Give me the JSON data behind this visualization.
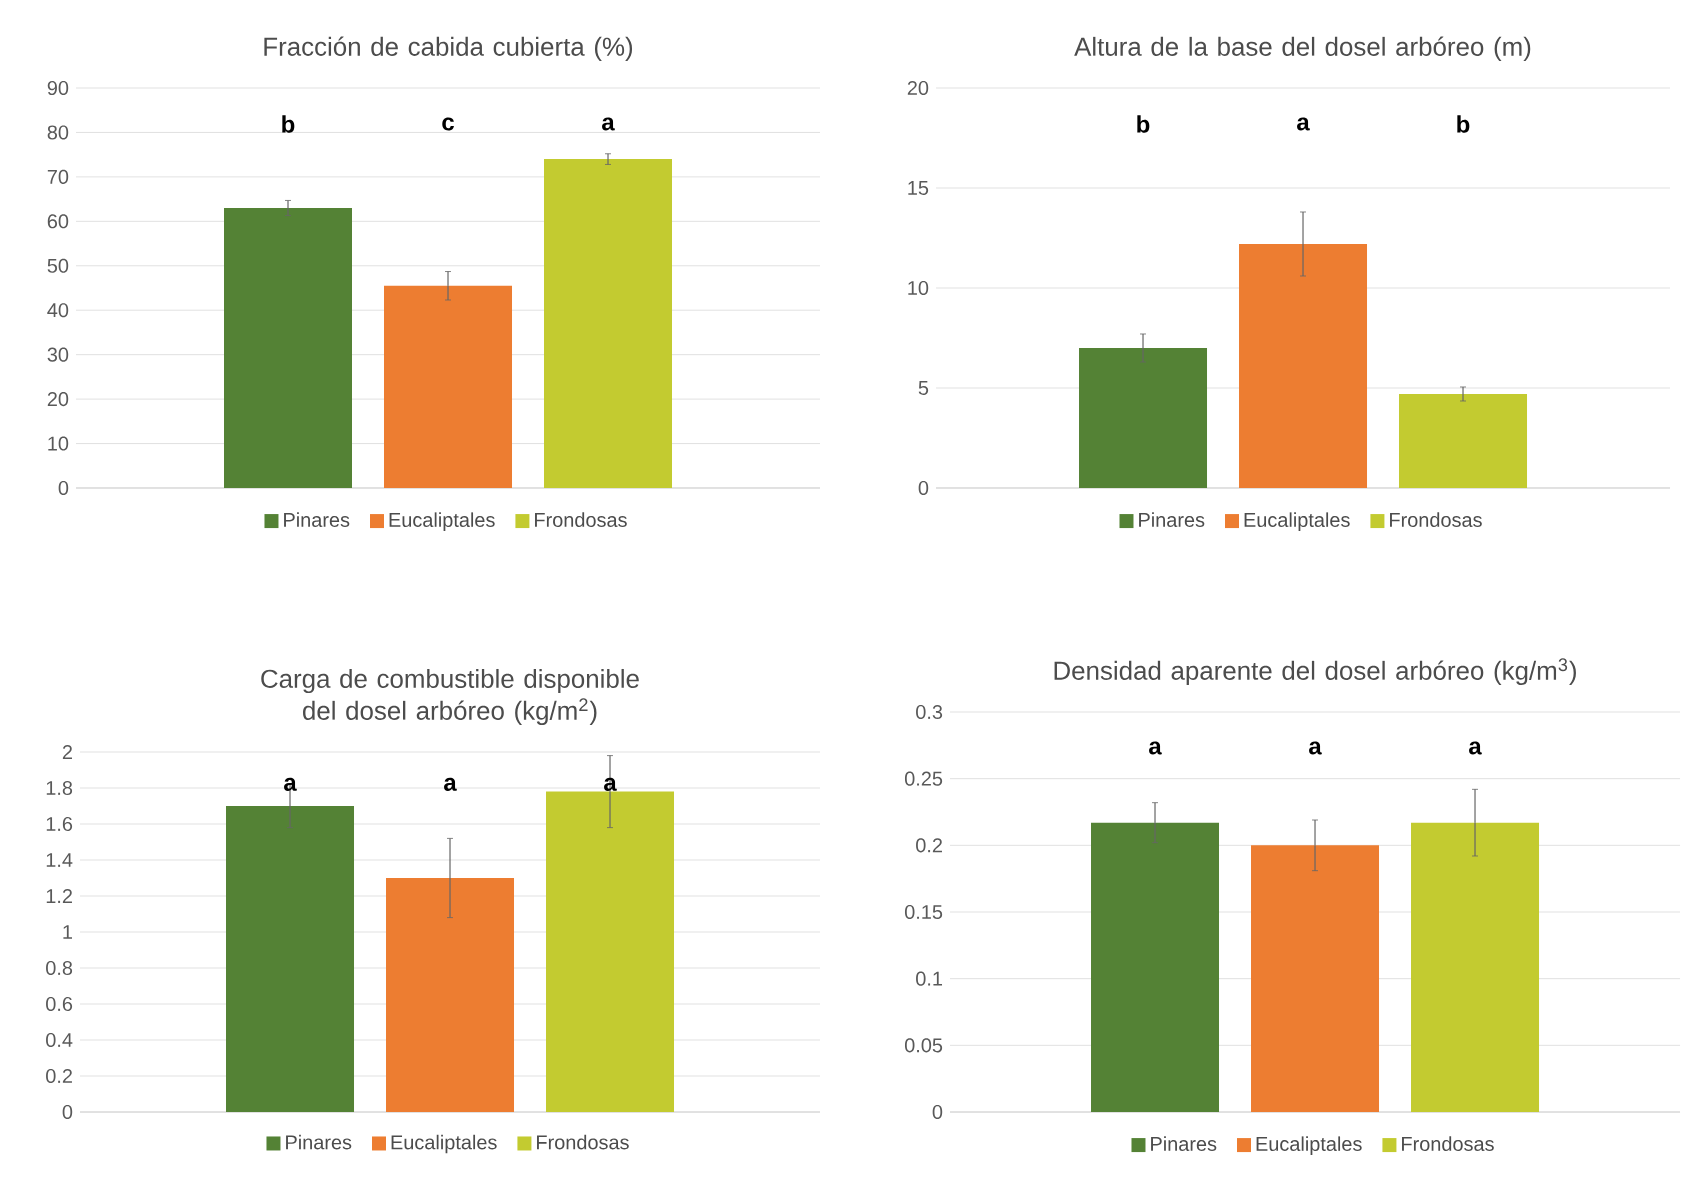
{
  "chart_data": [
    {
      "type": "bar",
      "title": "Fracción de cabida cubierta (%)",
      "categories": [
        null
      ],
      "series": [
        {
          "name": "Pinares",
          "color": "#548235",
          "values": [
            63
          ],
          "errors": [
            1.7
          ]
        },
        {
          "name": "Eucaliptales",
          "color": "#ed7d31",
          "values": [
            45.5
          ],
          "errors": [
            3.2
          ]
        },
        {
          "name": "Frondosas",
          "color": "#c3cb30",
          "values": [
            74
          ],
          "errors": [
            1.2
          ]
        }
      ],
      "annotations": [
        "b",
        "c",
        "a"
      ],
      "ylim": [
        0,
        90
      ],
      "yticks": [
        0,
        10,
        20,
        30,
        40,
        50,
        60,
        70,
        80,
        90
      ],
      "grid": "y",
      "legend": "bottom",
      "tick_labels": "y"
    },
    {
      "type": "bar",
      "title": "Altura de la base del dosel arbóreo (m)",
      "categories": [
        null
      ],
      "series": [
        {
          "name": "Pinares",
          "color": "#548235",
          "values": [
            7.0
          ],
          "errors": [
            0.7
          ]
        },
        {
          "name": "Eucaliptales",
          "color": "#ed7d31",
          "values": [
            12.2
          ],
          "errors": [
            1.6
          ]
        },
        {
          "name": "Frondosas",
          "color": "#c3cb30",
          "values": [
            4.7
          ],
          "errors": [
            0.35
          ]
        }
      ],
      "annotations": [
        "b",
        "a",
        "b"
      ],
      "ylim": [
        0,
        20
      ],
      "yticks": [
        0,
        5,
        10,
        15,
        20
      ],
      "grid": "y",
      "legend": "bottom",
      "tick_labels": "y"
    },
    {
      "type": "bar",
      "title": "Carga de combustible disponible del dosel arbóreo (kg/m$^{2}$)",
      "categories": [
        null
      ],
      "series": [
        {
          "name": "Pinares",
          "color": "#548235",
          "values": [
            1.7
          ],
          "errors": [
            0.12
          ]
        },
        {
          "name": "Eucaliptales",
          "color": "#ed7d31",
          "values": [
            1.3
          ],
          "errors": [
            0.22
          ]
        },
        {
          "name": "Frondosas",
          "color": "#c3cb30",
          "values": [
            1.78
          ],
          "errors": [
            0.2
          ]
        }
      ],
      "annotations": [
        "a",
        "a",
        "a"
      ],
      "ylim": [
        0,
        2
      ],
      "yticks": [
        0,
        0.2,
        0.4,
        0.6,
        0.8,
        1,
        1.2,
        1.4,
        1.6,
        1.8,
        2
      ],
      "grid": "y",
      "legend": "bottom",
      "tick_labels": "y"
    },
    {
      "type": "bar",
      "title": "Densidad aparente del dosel arbóreo (kg/m$^{3}$)",
      "categories": [
        null
      ],
      "series": [
        {
          "name": "Pinares",
          "color": "#548235",
          "values": [
            0.217
          ],
          "errors": [
            0.015
          ]
        },
        {
          "name": "Eucaliptales",
          "color": "#ed7d31",
          "values": [
            0.2
          ],
          "errors": [
            0.019
          ]
        },
        {
          "name": "Frondosas",
          "color": "#c3cb30",
          "values": [
            0.217
          ],
          "errors": [
            0.025
          ]
        }
      ],
      "annotations": [
        "a",
        "a",
        "a"
      ],
      "ylim": [
        0,
        0.3
      ],
      "yticks": [
        0,
        0.05,
        0.1,
        0.15,
        0.2,
        0.25,
        0.3
      ],
      "grid": "y",
      "legend": "bottom",
      "tick_labels": "y"
    }
  ]
}
